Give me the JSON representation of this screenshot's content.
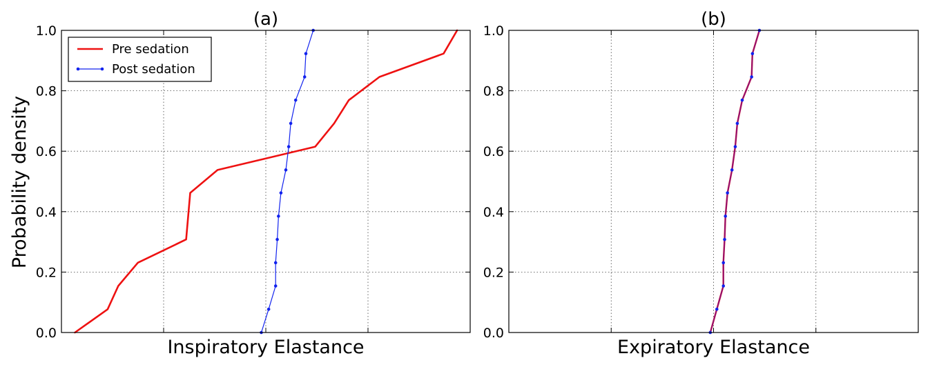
{
  "figure": {
    "ylabel": "Probability density"
  },
  "chart_data": [
    {
      "type": "line",
      "title": "(a)",
      "xlabel": "Inspiratory Elastance",
      "ylabel": "Probability density",
      "ylim": [
        0.0,
        1.0
      ],
      "xlim": [
        0,
        1
      ],
      "yticks": [
        "0.0",
        "0.2",
        "0.4",
        "0.6",
        "0.8",
        "1.0"
      ],
      "xtick_labels_shown": false,
      "grid": true,
      "legend_position": "upper-left",
      "series": [
        {
          "name": "Pre sedation",
          "color": "#ee1111",
          "marker": "none",
          "x": [
            0.033,
            0.113,
            0.139,
            0.187,
            0.305,
            0.315,
            0.382,
            0.621,
            0.667,
            0.703,
            0.778,
            0.935,
            0.968
          ],
          "y": [
            0.0,
            0.077,
            0.154,
            0.231,
            0.308,
            0.462,
            0.538,
            0.615,
            0.692,
            0.769,
            0.846,
            0.923,
            1.0
          ]
        },
        {
          "name": "Post sedation",
          "color": "#1122ee",
          "marker": "dot",
          "x": [
            0.489,
            0.507,
            0.524,
            0.524,
            0.528,
            0.531,
            0.537,
            0.549,
            0.556,
            0.561,
            0.573,
            0.595,
            0.598,
            0.616
          ],
          "y": [
            0.0,
            0.077,
            0.154,
            0.231,
            0.308,
            0.385,
            0.462,
            0.538,
            0.615,
            0.692,
            0.769,
            0.846,
            0.923,
            1.0
          ]
        }
      ]
    },
    {
      "type": "line",
      "title": "(b)",
      "xlabel": "Expiratory Elastance",
      "ylabel": "",
      "ylim": [
        0.0,
        1.0
      ],
      "xlim": [
        0,
        1
      ],
      "yticks": [
        "0.0",
        "0.2",
        "0.4",
        "0.6",
        "0.8",
        "1.0"
      ],
      "xtick_labels_shown": false,
      "grid": true,
      "legend_position": "none",
      "series": [
        {
          "name": "",
          "color": "#ee1111",
          "marker": "none",
          "x": [
            0.492,
            0.508,
            0.524,
            0.524,
            0.527,
            0.529,
            0.534,
            0.545,
            0.553,
            0.558,
            0.57,
            0.593,
            0.595,
            0.612
          ],
          "y": [
            0.0,
            0.077,
            0.154,
            0.231,
            0.308,
            0.385,
            0.462,
            0.538,
            0.615,
            0.692,
            0.769,
            0.846,
            0.923,
            1.0
          ]
        },
        {
          "name": "",
          "color": "#1122ee",
          "marker": "dot",
          "x": [
            0.492,
            0.508,
            0.524,
            0.524,
            0.527,
            0.529,
            0.534,
            0.545,
            0.553,
            0.558,
            0.57,
            0.593,
            0.595,
            0.612
          ],
          "y": [
            0.0,
            0.077,
            0.154,
            0.231,
            0.308,
            0.385,
            0.462,
            0.538,
            0.615,
            0.692,
            0.769,
            0.846,
            0.923,
            1.0
          ]
        }
      ]
    }
  ]
}
